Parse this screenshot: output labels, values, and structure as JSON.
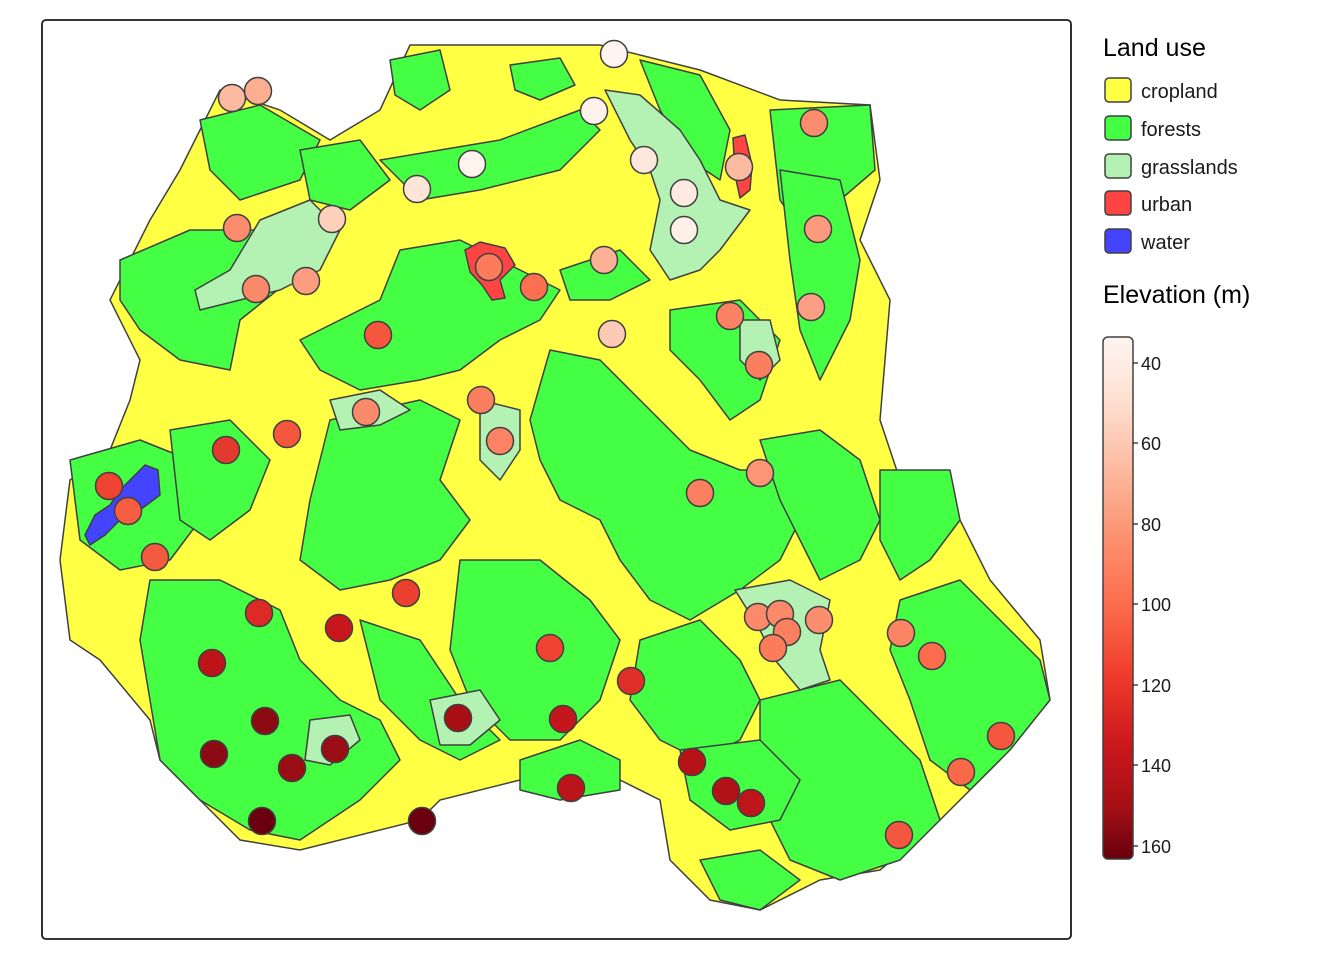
{
  "legend": {
    "land_use": {
      "title": "Land use",
      "items": [
        {
          "label": "cropland",
          "color": "#ffff44"
        },
        {
          "label": "forests",
          "color": "#44ff44"
        },
        {
          "label": "grasslands",
          "color": "#b3f2b3"
        },
        {
          "label": "urban",
          "color": "#ff4444"
        },
        {
          "label": "water",
          "color": "#4444ff"
        }
      ]
    },
    "elevation": {
      "title": "Elevation (m)",
      "ticks": [
        "40",
        "60",
        "80",
        "100",
        "120",
        "140",
        "160"
      ],
      "color_stops": [
        "#fff5f0",
        "#fee0d2",
        "#fcbba1",
        "#fc9272",
        "#fb6a4a",
        "#ef3b2c",
        "#cb181d",
        "#a50f15",
        "#67000d"
      ]
    }
  }
}
